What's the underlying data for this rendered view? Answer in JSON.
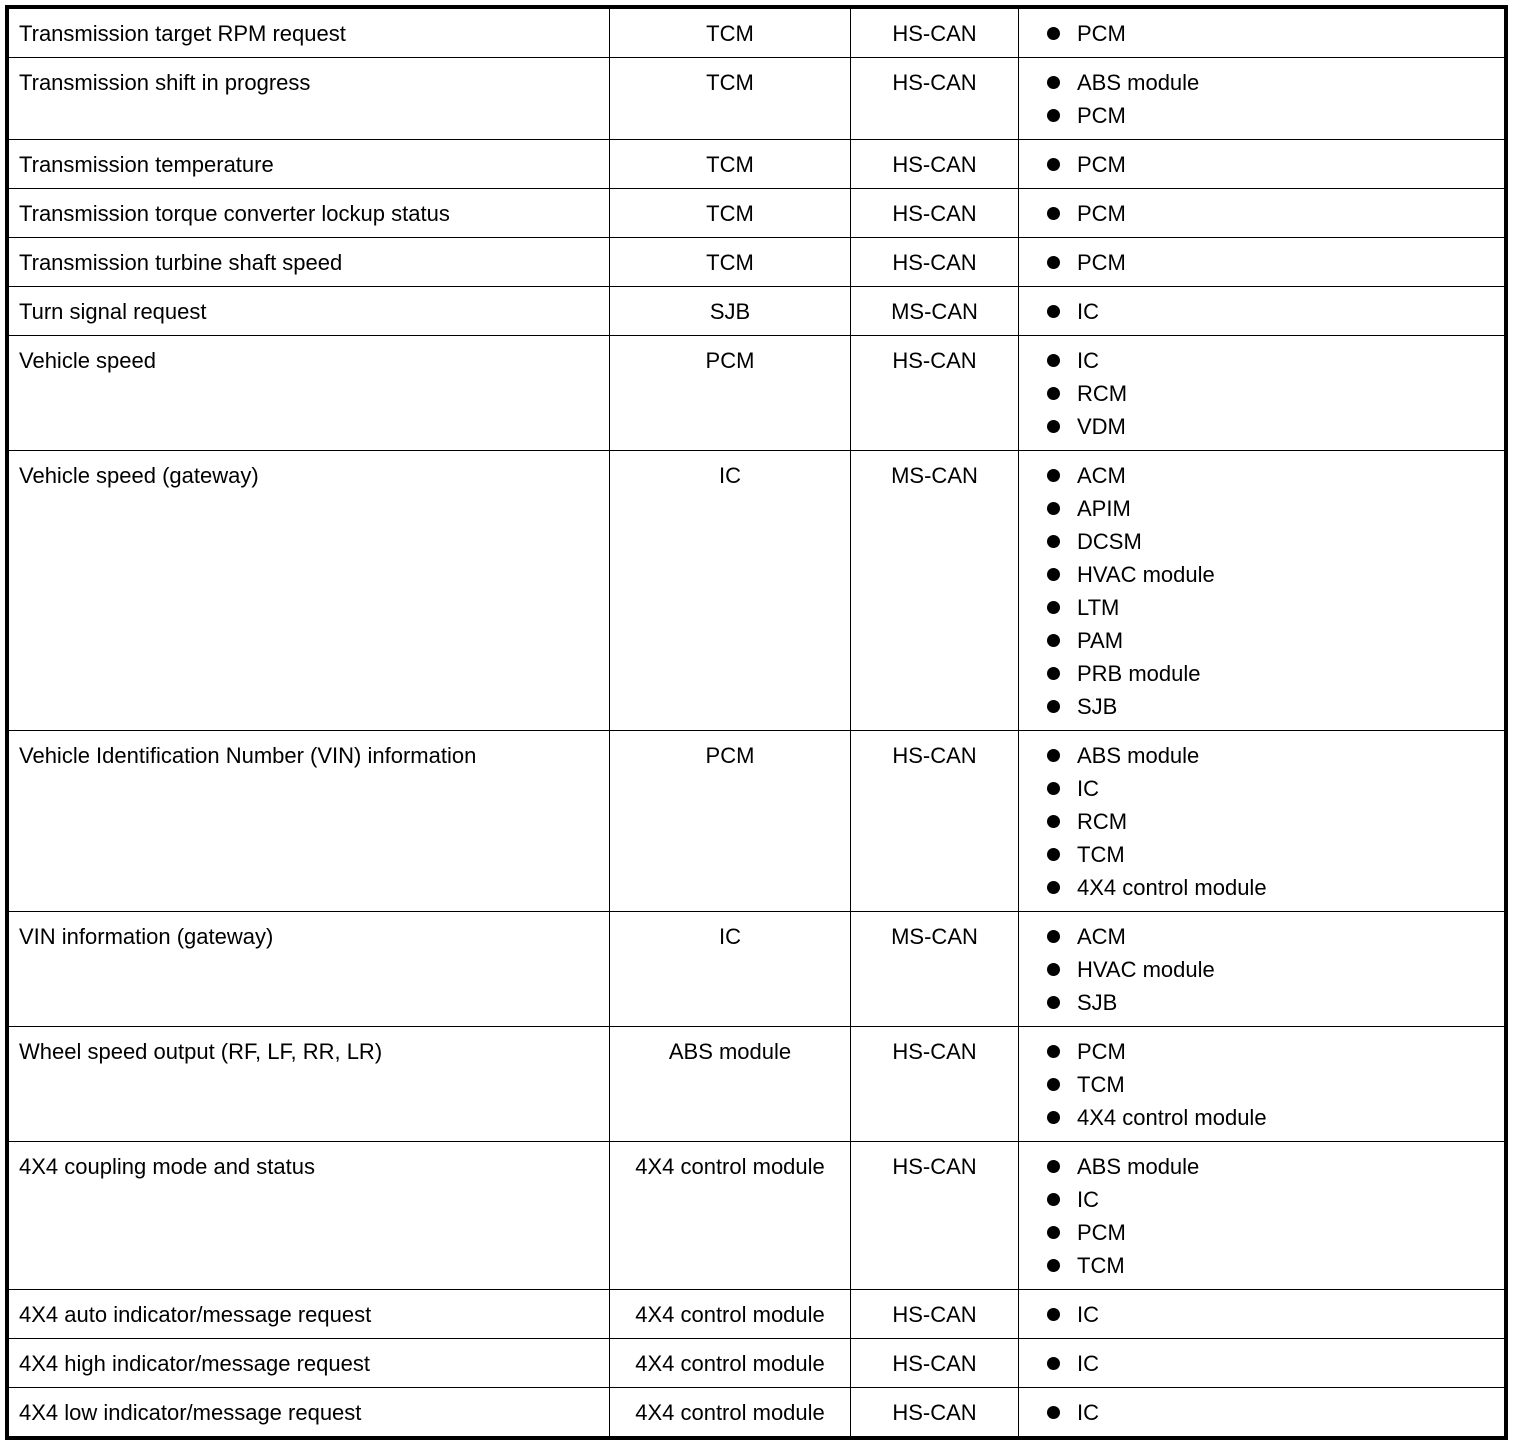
{
  "rows": [
    {
      "message": "Transmission target RPM request",
      "originator": "TCM",
      "network": "HS-CAN",
      "receivers": [
        "PCM"
      ]
    },
    {
      "message": "Transmission shift in progress",
      "originator": "TCM",
      "network": "HS-CAN",
      "receivers": [
        "ABS module",
        "PCM"
      ]
    },
    {
      "message": "Transmission temperature",
      "originator": "TCM",
      "network": "HS-CAN",
      "receivers": [
        "PCM"
      ]
    },
    {
      "message": "Transmission torque converter lockup status",
      "originator": "TCM",
      "network": "HS-CAN",
      "receivers": [
        "PCM"
      ]
    },
    {
      "message": "Transmission turbine shaft speed",
      "originator": "TCM",
      "network": "HS-CAN",
      "receivers": [
        "PCM"
      ]
    },
    {
      "message": "Turn signal request",
      "originator": "SJB",
      "network": "MS-CAN",
      "receivers": [
        "IC"
      ]
    },
    {
      "message": "Vehicle speed",
      "originator": "PCM",
      "network": "HS-CAN",
      "receivers": [
        "IC",
        "RCM",
        "VDM"
      ]
    },
    {
      "message": "Vehicle speed (gateway)",
      "originator": "IC",
      "network": "MS-CAN",
      "receivers": [
        "ACM",
        "APIM",
        "DCSM",
        "HVAC module",
        "LTM",
        "PAM",
        "PRB module",
        "SJB"
      ]
    },
    {
      "message": "Vehicle Identification Number (VIN) information",
      "originator": "PCM",
      "network": "HS-CAN",
      "receivers": [
        "ABS module",
        "IC",
        "RCM",
        "TCM",
        "4X4 control module"
      ]
    },
    {
      "message": "VIN information (gateway)",
      "originator": "IC",
      "network": "MS-CAN",
      "receivers": [
        "ACM",
        "HVAC module",
        "SJB"
      ]
    },
    {
      "message": "Wheel speed output (RF, LF, RR, LR)",
      "originator": "ABS module",
      "network": "HS-CAN",
      "receivers": [
        "PCM",
        "TCM",
        "4X4 control module"
      ]
    },
    {
      "message": "4X4 coupling mode and status",
      "originator": "4X4 control module",
      "network": "HS-CAN",
      "receivers": [
        "ABS module",
        "IC",
        "PCM",
        "TCM"
      ]
    },
    {
      "message": "4X4 auto indicator/message request",
      "originator": "4X4 control module",
      "network": "HS-CAN",
      "receivers": [
        "IC"
      ]
    },
    {
      "message": "4X4 high indicator/message request",
      "originator": "4X4 control module",
      "network": "HS-CAN",
      "receivers": [
        "IC"
      ]
    },
    {
      "message": "4X4 low indicator/message request",
      "originator": "4X4 control module",
      "network": "HS-CAN",
      "receivers": [
        "IC"
      ]
    }
  ]
}
